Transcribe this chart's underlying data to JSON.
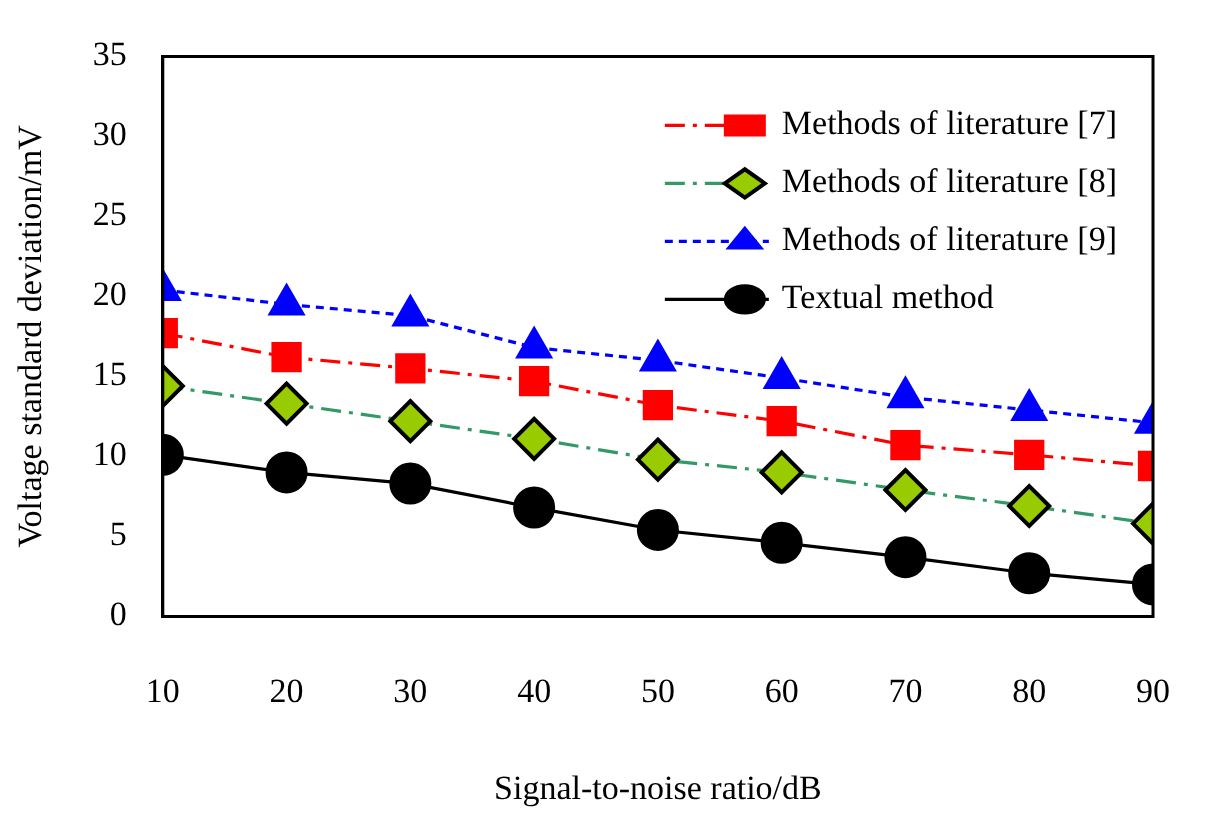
{
  "chart_data": {
    "type": "line",
    "xlabel": "Signal-to-noise ratio/dB",
    "ylabel": "Voltage standard deviation/mV",
    "x": [
      10,
      20,
      30,
      40,
      50,
      60,
      70,
      80,
      90
    ],
    "xlim": [
      10,
      90
    ],
    "xticks": [
      10,
      20,
      30,
      40,
      50,
      60,
      70,
      80,
      90
    ],
    "ylim": [
      0,
      35
    ],
    "yticks": [
      0,
      5,
      10,
      15,
      20,
      25,
      30,
      35
    ],
    "grid": false,
    "legend": "top right",
    "series": [
      {
        "name": "Methods of literature [7]",
        "color": "#ff0000",
        "marker": "square",
        "line_style": "dashed",
        "values": [
          17.7,
          16.2,
          15.5,
          14.7,
          13.2,
          12.2,
          10.7,
          10.1,
          9.4
        ]
      },
      {
        "name": "Methods of literature [8]",
        "color": "#99cc00",
        "marker": "diamond",
        "line_style": "dashed",
        "values": [
          14.4,
          13.3,
          12.2,
          11.1,
          9.8,
          9.0,
          7.9,
          6.9,
          5.8
        ]
      },
      {
        "name": "Methods of literature [9]",
        "color": "#0000ff",
        "marker": "triangle",
        "line_style": "dotted",
        "values": [
          20.4,
          19.5,
          18.8,
          16.8,
          16.0,
          14.9,
          13.7,
          12.9,
          12.1
        ]
      },
      {
        "name": "Textual method",
        "color": "#000000",
        "marker": "circle",
        "line_style": "solid",
        "values": [
          10.1,
          9.0,
          8.3,
          6.8,
          5.4,
          4.6,
          3.7,
          2.7,
          2.0
        ]
      }
    ]
  }
}
